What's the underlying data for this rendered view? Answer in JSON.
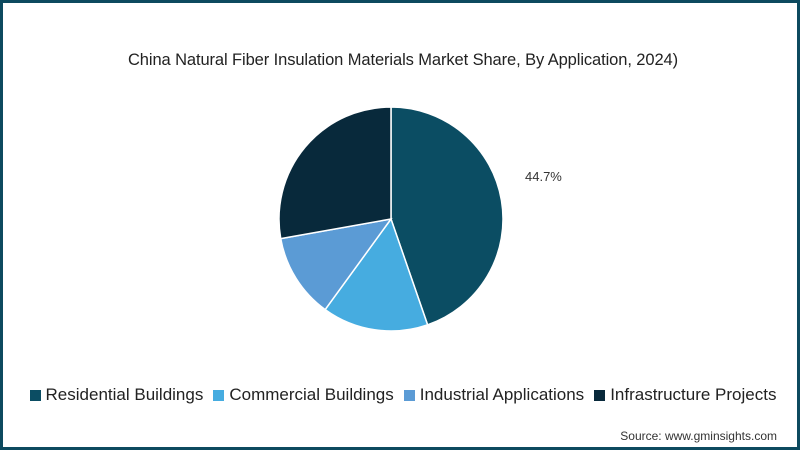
{
  "title": "China Natural Fiber Insulation Materials Market Share, By Application,  2024)",
  "source": "Source: www.gminsights.com",
  "colors": {
    "frame_border": "#0d4a5f",
    "residential": "#0b4d63",
    "commercial": "#46ace0",
    "industrial": "#5b9bd5",
    "infrastructure": "#08293b"
  },
  "legend": [
    {
      "label": "Residential Buildings",
      "color": "#0b4d63"
    },
    {
      "label": "Commercial Buildings",
      "color": "#46ace0"
    },
    {
      "label": "Industrial Applications",
      "color": "#5b9bd5"
    },
    {
      "label": "Infrastructure Projects",
      "color": "#08293b"
    }
  ],
  "chart_data": {
    "type": "pie",
    "title": "China Natural Fiber Insulation Materials Market Share, By Application,  2024)",
    "categories": [
      "Residential Buildings",
      "Commercial Buildings",
      "Industrial Applications",
      "Infrastructure Projects"
    ],
    "values": [
      44.7,
      15.3,
      12.2,
      27.8
    ],
    "data_labels": [
      "44.7%",
      "",
      "",
      ""
    ],
    "legend_position": "bottom",
    "start_angle": "12 o'clock, clockwise"
  }
}
